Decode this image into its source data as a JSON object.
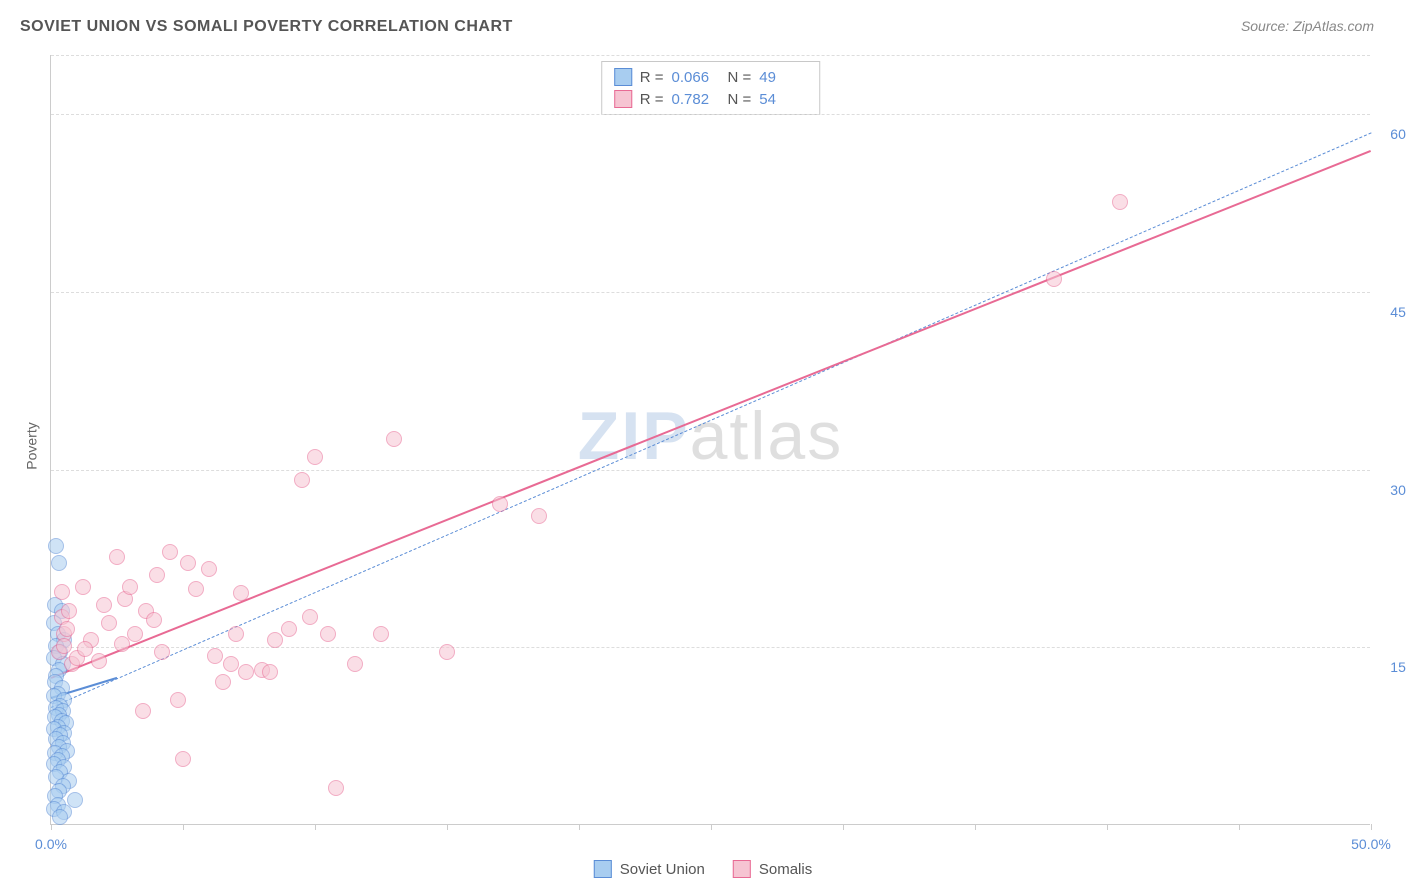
{
  "title": "SOVIET UNION VS SOMALI POVERTY CORRELATION CHART",
  "source": "Source: ZipAtlas.com",
  "y_axis_label": "Poverty",
  "watermark": {
    "part1": "ZIP",
    "part2": "atlas"
  },
  "chart": {
    "type": "scatter",
    "background_color": "#ffffff",
    "grid_color": "#dddddd",
    "axis_color": "#cccccc",
    "tick_label_color": "#5b8dd6",
    "xlim": [
      0,
      50
    ],
    "ylim": [
      0,
      65
    ],
    "x_ticks": [
      0,
      5,
      10,
      15,
      20,
      25,
      30,
      35,
      40,
      45,
      50
    ],
    "x_tick_labels_shown": {
      "0": "0.0%",
      "50": "50.0%"
    },
    "y_gridlines": [
      15,
      30,
      45,
      60,
      65
    ],
    "y_tick_labels": {
      "15": "15.0%",
      "30": "30.0%",
      "45": "45.0%",
      "60": "60.0%"
    },
    "marker_radius": 8,
    "marker_opacity": 0.55,
    "series": [
      {
        "name": "Soviet Union",
        "color_fill": "#a8cdf0",
        "color_stroke": "#5b8dd6",
        "R": "0.066",
        "N": "49",
        "trendline": {
          "x1": 0,
          "y1": 10.8,
          "x2": 2.5,
          "y2": 12.5,
          "stroke": "#5b8dd6",
          "width": 2,
          "dash": "none"
        },
        "points": [
          [
            0.2,
            23.5
          ],
          [
            0.3,
            22.0
          ],
          [
            0.15,
            18.5
          ],
          [
            0.4,
            18.0
          ],
          [
            0.1,
            17.0
          ],
          [
            0.25,
            16.0
          ],
          [
            0.5,
            15.5
          ],
          [
            0.2,
            15.0
          ],
          [
            0.35,
            14.5
          ],
          [
            0.1,
            14.0
          ],
          [
            0.45,
            13.5
          ],
          [
            0.3,
            13.0
          ],
          [
            0.2,
            12.5
          ],
          [
            0.15,
            12.0
          ],
          [
            0.4,
            11.5
          ],
          [
            0.25,
            11.0
          ],
          [
            0.1,
            10.8
          ],
          [
            0.5,
            10.5
          ],
          [
            0.35,
            10.0
          ],
          [
            0.2,
            9.8
          ],
          [
            0.45,
            9.5
          ],
          [
            0.3,
            9.2
          ],
          [
            0.15,
            9.0
          ],
          [
            0.4,
            8.7
          ],
          [
            0.55,
            8.5
          ],
          [
            0.25,
            8.2
          ],
          [
            0.1,
            8.0
          ],
          [
            0.5,
            7.7
          ],
          [
            0.35,
            7.5
          ],
          [
            0.2,
            7.2
          ],
          [
            0.45,
            6.8
          ],
          [
            0.3,
            6.5
          ],
          [
            0.6,
            6.2
          ],
          [
            0.15,
            6.0
          ],
          [
            0.4,
            5.7
          ],
          [
            0.25,
            5.4
          ],
          [
            0.1,
            5.1
          ],
          [
            0.5,
            4.8
          ],
          [
            0.35,
            4.4
          ],
          [
            0.2,
            4.0
          ],
          [
            0.7,
            3.6
          ],
          [
            0.45,
            3.2
          ],
          [
            0.3,
            2.8
          ],
          [
            0.15,
            2.4
          ],
          [
            0.9,
            2.0
          ],
          [
            0.25,
            1.6
          ],
          [
            0.1,
            1.3
          ],
          [
            0.5,
            1.0
          ],
          [
            0.35,
            0.6
          ]
        ]
      },
      {
        "name": "Somalis",
        "color_fill": "#f6c4d2",
        "color_stroke": "#e86a94",
        "R": "0.782",
        "N": "54",
        "trendline": {
          "x1": 0,
          "y1": 12.5,
          "x2": 50,
          "y2": 57.0,
          "stroke": "#e86a94",
          "width": 2.5,
          "dash": "none"
        },
        "points": [
          [
            0.3,
            14.5
          ],
          [
            0.5,
            16.0
          ],
          [
            0.4,
            17.5
          ],
          [
            0.6,
            16.5
          ],
          [
            0.8,
            13.5
          ],
          [
            0.5,
            15.0
          ],
          [
            0.7,
            18.0
          ],
          [
            0.4,
            19.6
          ],
          [
            1.0,
            14.0
          ],
          [
            1.2,
            20.0
          ],
          [
            1.5,
            15.5
          ],
          [
            1.3,
            14.8
          ],
          [
            2.0,
            18.5
          ],
          [
            2.2,
            17.0
          ],
          [
            2.5,
            22.5
          ],
          [
            2.8,
            19.0
          ],
          [
            3.0,
            20.0
          ],
          [
            3.2,
            16.0
          ],
          [
            3.6,
            18.0
          ],
          [
            3.5,
            9.5
          ],
          [
            4.0,
            21.0
          ],
          [
            4.5,
            23.0
          ],
          [
            4.2,
            14.5
          ],
          [
            4.8,
            10.5
          ],
          [
            5.2,
            22.0
          ],
          [
            5.5,
            19.8
          ],
          [
            5.0,
            5.5
          ],
          [
            6.0,
            21.5
          ],
          [
            6.5,
            12.0
          ],
          [
            6.8,
            13.5
          ],
          [
            7.0,
            16.0
          ],
          [
            7.4,
            12.8
          ],
          [
            7.2,
            19.5
          ],
          [
            8.0,
            13.0
          ],
          [
            8.5,
            15.5
          ],
          [
            8.3,
            12.8
          ],
          [
            9.0,
            16.5
          ],
          [
            9.5,
            29.0
          ],
          [
            10.0,
            31.0
          ],
          [
            10.8,
            3.0
          ],
          [
            10.5,
            16.0
          ],
          [
            11.5,
            13.5
          ],
          [
            12.5,
            16.0
          ],
          [
            13.0,
            32.5
          ],
          [
            15.0,
            14.5
          ],
          [
            17.0,
            27.0
          ],
          [
            18.5,
            26.0
          ],
          [
            38.0,
            46.0
          ],
          [
            40.5,
            52.5
          ],
          [
            2.7,
            15.2
          ],
          [
            3.9,
            17.2
          ],
          [
            1.8,
            13.8
          ],
          [
            6.2,
            14.2
          ],
          [
            9.8,
            17.5
          ]
        ]
      }
    ],
    "reference_line": {
      "x1": 0,
      "y1": 10.0,
      "x2": 50,
      "y2": 58.5,
      "stroke": "#5b8dd6",
      "width": 1.5,
      "dash": "6,5"
    }
  },
  "legend_top": {
    "rows": [
      {
        "swatch_fill": "#a8cdf0",
        "swatch_stroke": "#5b8dd6",
        "r_label": "R =",
        "r_val": "0.066",
        "n_label": "N =",
        "n_val": "49"
      },
      {
        "swatch_fill": "#f6c4d2",
        "swatch_stroke": "#e86a94",
        "r_label": "R =",
        "r_val": "0.782",
        "n_label": "N =",
        "n_val": "54"
      }
    ]
  },
  "legend_bottom": {
    "items": [
      {
        "swatch_fill": "#a8cdf0",
        "swatch_stroke": "#5b8dd6",
        "label": "Soviet Union"
      },
      {
        "swatch_fill": "#f6c4d2",
        "swatch_stroke": "#e86a94",
        "label": "Somalis"
      }
    ]
  }
}
